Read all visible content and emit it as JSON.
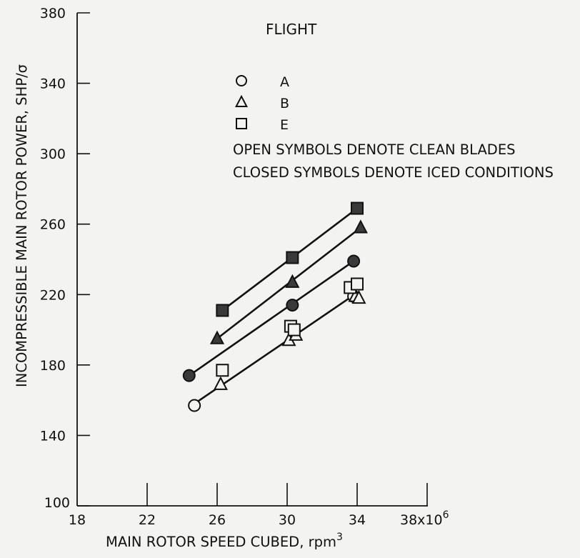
{
  "chart_data": {
    "type": "scatter",
    "xlabel": "MAIN ROTOR SPEED CUBED, rpm",
    "xlabel_sup": "3",
    "ylabel": "INCOMPRESSIBLE MAIN ROTOR POWER, SHP/σ",
    "xlim": [
      18,
      38
    ],
    "ylim": [
      100,
      380
    ],
    "x_ticks": [
      18,
      22,
      26,
      30,
      34,
      38
    ],
    "x_tick_labels": [
      "18",
      "22",
      "26",
      "30",
      "34",
      "38x10"
    ],
    "x_last_tick_sup": "6",
    "y_ticks": [
      100,
      140,
      180,
      220,
      260,
      300,
      340,
      380
    ],
    "y_tick_labels": [
      "100",
      "140",
      "180",
      "220",
      "260",
      "300",
      "340",
      "380"
    ],
    "grid": false,
    "legend": {
      "title": "FLIGHT",
      "placement": "top-right",
      "entries": [
        {
          "symbol": "circle",
          "label": "A"
        },
        {
          "symbol": "triangle",
          "label": "B"
        },
        {
          "symbol": "square",
          "label": "E"
        }
      ],
      "notes": [
        "OPEN SYMBOLS DENOTE CLEAN BLADES",
        "CLOSED SYMBOLS DENOTE ICED CONDITIONS"
      ]
    },
    "series": [
      {
        "flight": "A",
        "symbol": "circle",
        "filled": false,
        "points": [
          [
            24.7,
            157
          ],
          [
            30.3,
            201
          ],
          [
            33.8,
            219
          ]
        ]
      },
      {
        "flight": "B",
        "symbol": "triangle",
        "filled": false,
        "points": [
          [
            26.2,
            169
          ],
          [
            30.1,
            194
          ],
          [
            30.5,
            197
          ],
          [
            33.9,
            219
          ],
          [
            34.1,
            218
          ]
        ]
      },
      {
        "flight": "E",
        "symbol": "square",
        "filled": false,
        "points": [
          [
            26.3,
            177
          ],
          [
            30.2,
            202
          ],
          [
            30.4,
            200
          ],
          [
            33.6,
            224
          ],
          [
            34.0,
            226
          ]
        ]
      },
      {
        "flight": "A",
        "symbol": "circle",
        "filled": true,
        "points": [
          [
            24.4,
            174
          ],
          [
            30.3,
            214
          ],
          [
            33.8,
            239
          ]
        ]
      },
      {
        "flight": "B",
        "symbol": "triangle",
        "filled": true,
        "points": [
          [
            26.0,
            195
          ],
          [
            30.3,
            227
          ],
          [
            34.2,
            258
          ]
        ]
      },
      {
        "flight": "E",
        "symbol": "square",
        "filled": true,
        "points": [
          [
            26.3,
            211
          ],
          [
            30.3,
            241
          ],
          [
            34.0,
            269
          ]
        ]
      }
    ],
    "fit_lines": [
      {
        "name": "clean",
        "x": [
          24.7,
          34.0
        ],
        "y": [
          158,
          221
        ]
      },
      {
        "name": "iced A",
        "x": [
          24.4,
          33.8
        ],
        "y": [
          174,
          239
        ]
      },
      {
        "name": "iced B",
        "x": [
          26.0,
          34.2
        ],
        "y": [
          195,
          258
        ]
      },
      {
        "name": "iced E",
        "x": [
          26.3,
          34.0
        ],
        "y": [
          211,
          269
        ]
      }
    ],
    "colors": {
      "ink": "#111111",
      "filled": "#3a3a3a",
      "open": "#f3f3f1"
    }
  }
}
